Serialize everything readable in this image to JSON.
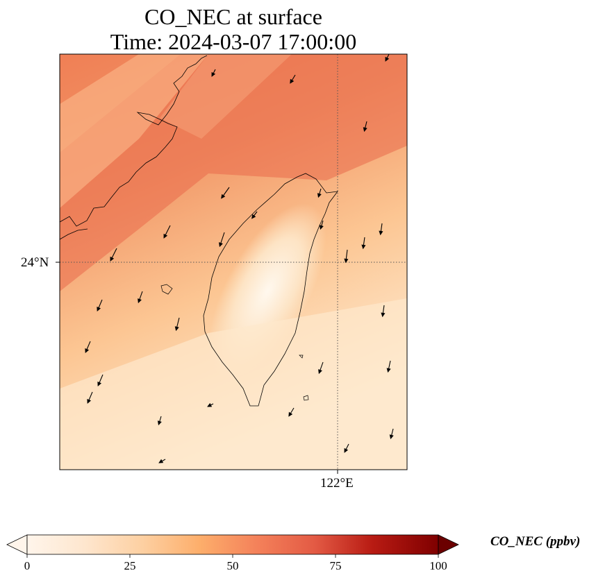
{
  "title": {
    "line1": "CO_NEC at surface",
    "line2": "Time: 2024-03-07 17:00:00"
  },
  "map": {
    "gridlines": {
      "lat_label": "24°N",
      "lon_label": "122°E"
    },
    "field_range_ppbv": [
      0,
      100
    ]
  },
  "colorbar": {
    "label": "CO_NEC (ppbv)",
    "ticks": [
      {
        "value": 0,
        "label": "0"
      },
      {
        "value": 25,
        "label": "25"
      },
      {
        "value": 50,
        "label": "50"
      },
      {
        "value": 75,
        "label": "75"
      },
      {
        "value": 100,
        "label": "100"
      }
    ],
    "extend": "both",
    "colors": [
      "#fff5eb",
      "#fdd9b2",
      "#fdb679",
      "#f4815a",
      "#e35a44",
      "#c8271c",
      "#a50000",
      "#6b0000"
    ]
  }
}
